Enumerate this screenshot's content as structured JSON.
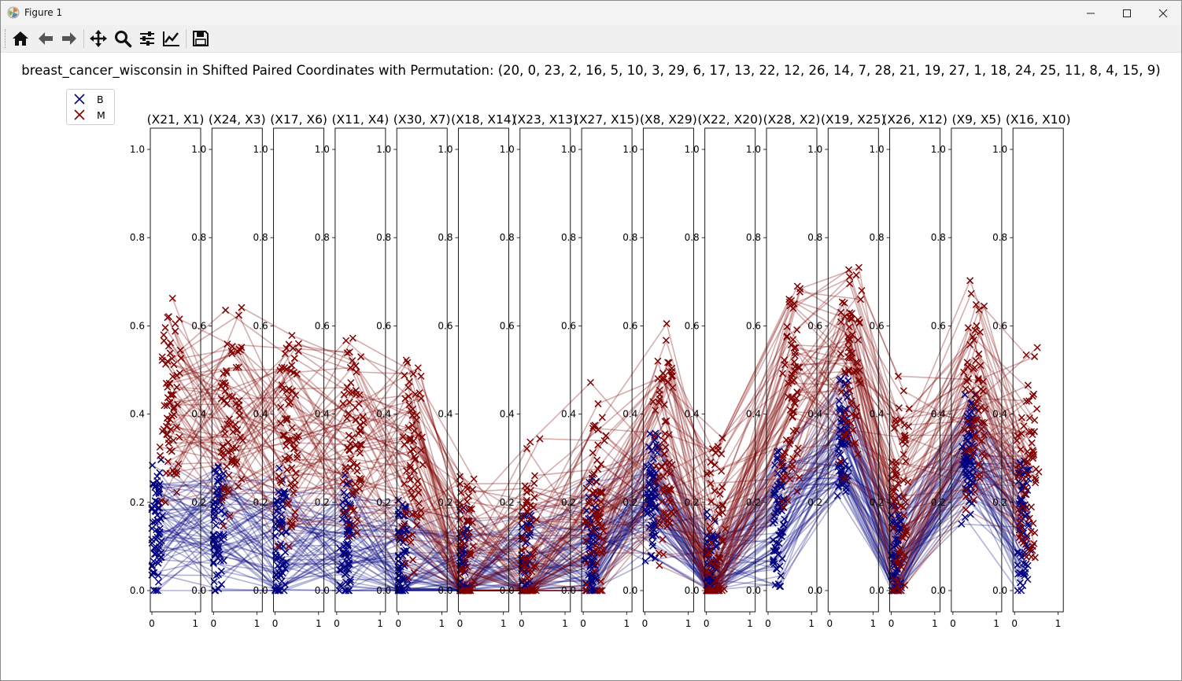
{
  "window": {
    "title": "Figure 1",
    "controls": [
      "minimize",
      "maximize",
      "close"
    ]
  },
  "toolbar": {
    "buttons": [
      {
        "name": "home",
        "icon": "home-icon"
      },
      {
        "name": "back",
        "icon": "arrow-left-icon"
      },
      {
        "name": "forward",
        "icon": "arrow-right-icon"
      },
      {
        "name": "pan",
        "icon": "move-icon"
      },
      {
        "name": "zoom",
        "icon": "magnifier-icon"
      },
      {
        "name": "configure-subplots",
        "icon": "sliders-icon"
      },
      {
        "name": "edit-axis",
        "icon": "line-chart-icon"
      },
      {
        "name": "save",
        "icon": "floppy-disk-icon"
      }
    ]
  },
  "chart_data": {
    "type": "line",
    "title": "breast_cancer_wisconsin in Shifted Paired Coordinates with Permutation: (20, 0, 23, 2, 16, 5, 10, 3, 29, 6, 17, 13, 22, 12, 26, 14, 7, 28, 21, 19, 27, 1, 18, 24, 25, 11, 8, 4, 15, 9)",
    "subplot_titles": [
      "(X21, X1)",
      "(X24, X3)",
      "(X17, X6)",
      "(X11, X4)",
      "(X30, X7)",
      "(X18, X14)",
      "(X23, X13)",
      "(X27, X15)",
      "(X8, X29)",
      "(X22, X20)",
      "(X28, X2)",
      "(X19, X25)",
      "(X26, X12)",
      "(X9, X5)",
      "(X16, X10)"
    ],
    "y_ticks": [
      "0.0",
      "0.2",
      "0.4",
      "0.6",
      "0.8",
      "1.0"
    ],
    "x_ticks": [
      "0",
      "1"
    ],
    "xlim": [
      0,
      1
    ],
    "ylim": [
      0,
      1
    ],
    "marker": "x",
    "legend_position": "upper-left",
    "series": [
      {
        "name": "B",
        "color": "#00007f"
      },
      {
        "name": "M",
        "color": "#7f0000"
      }
    ],
    "typical_profile": {
      "B": [
        [
          0.1,
          0.13
        ],
        [
          0.1,
          0.13
        ],
        [
          0.12,
          0.11
        ],
        [
          0.2,
          0.09
        ],
        [
          0.06,
          0.05
        ],
        [
          0.05,
          0.03
        ],
        [
          0.07,
          0.03
        ],
        [
          0.18,
          0.08
        ],
        [
          0.16,
          0.2
        ],
        [
          0.1,
          0.03
        ],
        [
          0.24,
          0.16
        ],
        [
          0.3,
          0.34
        ],
        [
          0.1,
          0.06
        ],
        [
          0.36,
          0.3
        ],
        [
          0.2,
          0.14
        ]
      ],
      "M": [
        [
          0.45,
          0.42
        ],
        [
          0.42,
          0.41
        ],
        [
          0.32,
          0.36
        ],
        [
          0.38,
          0.34
        ],
        [
          0.32,
          0.3
        ],
        [
          0.1,
          0.06
        ],
        [
          0.15,
          0.08
        ],
        [
          0.3,
          0.2
        ],
        [
          0.46,
          0.33
        ],
        [
          0.2,
          0.1
        ],
        [
          0.55,
          0.45
        ],
        [
          0.48,
          0.52
        ],
        [
          0.2,
          0.2
        ],
        [
          0.52,
          0.45
        ],
        [
          0.3,
          0.28
        ]
      ]
    }
  }
}
